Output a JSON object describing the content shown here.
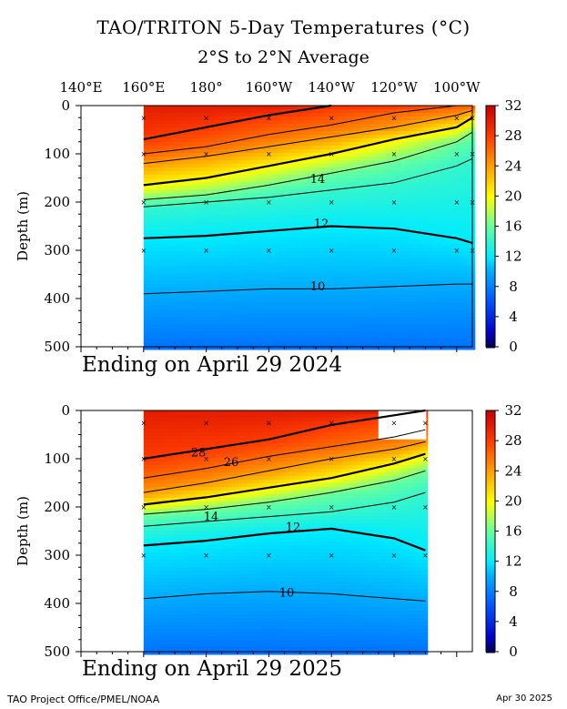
{
  "header": {
    "title": "TAO/TRITON 5-Day Temperatures (°C)",
    "subtitle": "2°S to 2°N Average"
  },
  "footer": {
    "credit": "TAO Project Office/PMEL/NOAA",
    "date": "Apr 30 2025"
  },
  "chart_data": [
    {
      "type": "heatmap",
      "title": "TAO/TRITON 5-Day Temperatures (°C)",
      "subtitle": "2°S to 2°N Average",
      "caption": "Ending on April 29 2024",
      "ylabel": "Depth (m)",
      "ylim": [
        0,
        500
      ],
      "x_ticks": [
        "140°E",
        "160°E",
        "180°",
        "160°W",
        "140°W",
        "120°W",
        "100°W"
      ],
      "y_ticks": [
        0,
        100,
        200,
        300,
        400,
        500
      ],
      "colorbar_ticks": [
        0,
        4,
        8,
        12,
        16,
        20,
        24,
        28,
        32
      ],
      "contour_labels": [
        "14",
        "12",
        "10"
      ],
      "data_start": "160°E",
      "data_end": "95°W",
      "longitudes_deg_east": [
        160,
        180,
        200,
        220,
        240,
        260,
        265
      ],
      "isotherm_depths_m": {
        "28": [
          70,
          45,
          20,
          0,
          null,
          null,
          null
        ],
        "26": [
          100,
          85,
          60,
          40,
          15,
          0,
          null
        ],
        "24": [
          120,
          105,
          85,
          65,
          45,
          20,
          10
        ],
        "20": [
          165,
          150,
          125,
          100,
          70,
          45,
          25
        ],
        "16": [
          195,
          185,
          165,
          140,
          115,
          75,
          55
        ],
        "14": [
          210,
          200,
          190,
          175,
          160,
          125,
          110
        ],
        "12": [
          275,
          270,
          260,
          250,
          255,
          275,
          285
        ],
        "10": [
          390,
          385,
          380,
          380,
          375,
          370,
          370
        ]
      }
    },
    {
      "type": "heatmap",
      "title": "TAO/TRITON 5-Day Temperatures (°C)",
      "subtitle": "2°S to 2°N Average",
      "caption": "Ending on April 29 2025",
      "ylabel": "Depth (m)",
      "ylim": [
        0,
        500
      ],
      "x_ticks": [
        "",
        "",
        "",
        "",
        "",
        "",
        ""
      ],
      "y_ticks": [
        0,
        100,
        200,
        300,
        400,
        500
      ],
      "colorbar_ticks": [
        0,
        4,
        8,
        12,
        16,
        20,
        24,
        28,
        32
      ],
      "contour_labels": [
        "28",
        "26",
        "14",
        "12",
        "10"
      ],
      "data_start": "160°E",
      "data_end": "110°W",
      "missing_region": {
        "lon_from": "125°W",
        "lon_to": "110°W",
        "depth_to": 60
      },
      "longitudes_deg_east": [
        160,
        180,
        200,
        220,
        240,
        250
      ],
      "isotherm_depths_m": {
        "28": [
          100,
          80,
          60,
          30,
          10,
          0
        ],
        "26": [
          140,
          120,
          95,
          75,
          55,
          40
        ],
        "24": [
          170,
          150,
          125,
          100,
          80,
          65
        ],
        "20": [
          195,
          180,
          160,
          140,
          110,
          90
        ],
        "16": [
          215,
          205,
          190,
          170,
          145,
          125
        ],
        "14": [
          240,
          230,
          220,
          210,
          190,
          170
        ],
        "12": [
          280,
          270,
          255,
          245,
          265,
          290
        ],
        "10": [
          390,
          380,
          375,
          380,
          390,
          395
        ]
      }
    }
  ]
}
